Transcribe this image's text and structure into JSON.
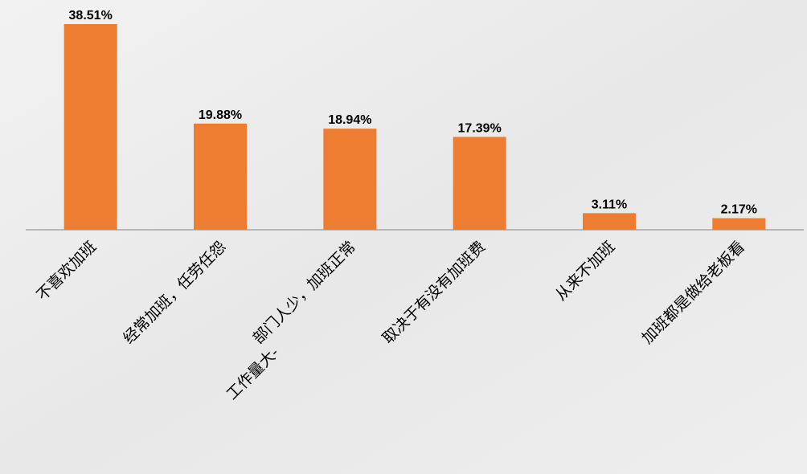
{
  "chart_data": {
    "type": "bar",
    "categories": [
      "不喜欢加班",
      "经常加班，任劳任怨",
      "工作量大-部门人少，加班正常",
      "取决于有没有加班费",
      "从来不加班",
      "加班都是做给老板看"
    ],
    "values": [
      38.51,
      19.88,
      18.94,
      17.39,
      3.11,
      2.17
    ],
    "value_labels": [
      "38.51%",
      "19.88%",
      "18.94%",
      "17.39%",
      "3.11%",
      "2.17%"
    ],
    "color": "#ed7d31"
  }
}
